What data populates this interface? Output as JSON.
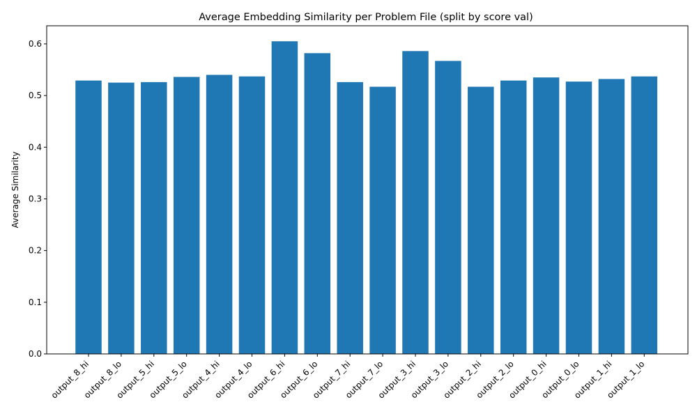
{
  "chart_data": {
    "type": "bar",
    "title": "Average Embedding Similarity per Problem File (split by score val)",
    "xlabel": "",
    "ylabel": "Average Similarity",
    "categories": [
      "output_8_hi",
      "output_8_lo",
      "output_5_hi",
      "output_5_lo",
      "output_4_hi",
      "output_4_lo",
      "output_6_hi",
      "output_6_lo",
      "output_7_hi",
      "output_7_lo",
      "output_3_hi",
      "output_3_lo",
      "output_2_hi",
      "output_2_lo",
      "output_0_hi",
      "output_0_lo",
      "output_1_hi",
      "output_1_lo"
    ],
    "values": [
      0.529,
      0.525,
      0.526,
      0.536,
      0.54,
      0.537,
      0.605,
      0.582,
      0.526,
      0.517,
      0.586,
      0.567,
      0.517,
      0.529,
      0.535,
      0.527,
      0.532,
      0.537
    ],
    "ylim": [
      0,
      0.635
    ],
    "yticks": [
      "0.0",
      "0.1",
      "0.2",
      "0.3",
      "0.4",
      "0.5",
      "0.6"
    ],
    "bar_color": "#1f77b4",
    "grid": false,
    "legend": "none"
  }
}
